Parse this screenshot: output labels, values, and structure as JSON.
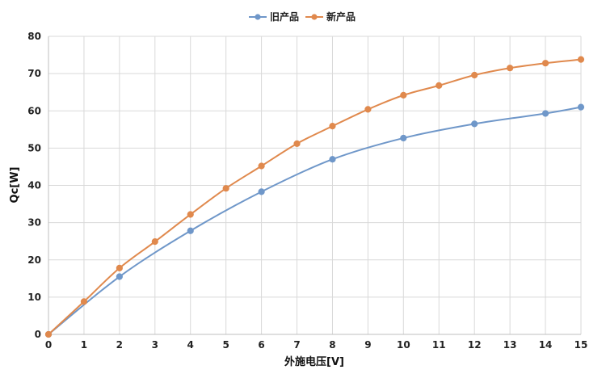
{
  "chart_data": {
    "type": "line",
    "title": "",
    "xlabel": "外施电压[V]",
    "ylabel": "Qc[W]",
    "xlim": [
      0,
      15
    ],
    "ylim": [
      0,
      80
    ],
    "x_ticks": [
      0,
      1,
      2,
      3,
      4,
      5,
      6,
      7,
      8,
      9,
      10,
      11,
      12,
      13,
      14,
      15
    ],
    "y_ticks": [
      0,
      10,
      20,
      30,
      40,
      50,
      60,
      70,
      80
    ],
    "grid": true,
    "legend_position": "top-center",
    "smooth": true,
    "series": [
      {
        "name": "旧产品",
        "color": "#6f97c9",
        "points": [
          {
            "x": 0,
            "y": 0
          },
          {
            "x": 2,
            "y": 15.5
          },
          {
            "x": 4,
            "y": 27.8
          },
          {
            "x": 6,
            "y": 38.3
          },
          {
            "x": 8,
            "y": 47.0
          },
          {
            "x": 10,
            "y": 52.7
          },
          {
            "x": 12,
            "y": 56.5
          },
          {
            "x": 14,
            "y": 59.3
          },
          {
            "x": 15,
            "y": 61.0
          }
        ]
      },
      {
        "name": "新产品",
        "color": "#e0894d",
        "points": [
          {
            "x": 0,
            "y": 0
          },
          {
            "x": 1,
            "y": 8.8
          },
          {
            "x": 2,
            "y": 17.8
          },
          {
            "x": 3,
            "y": 24.9
          },
          {
            "x": 4,
            "y": 32.2
          },
          {
            "x": 5,
            "y": 39.2
          },
          {
            "x": 6,
            "y": 45.2
          },
          {
            "x": 7,
            "y": 51.2
          },
          {
            "x": 8,
            "y": 55.9
          },
          {
            "x": 9,
            "y": 60.4
          },
          {
            "x": 10,
            "y": 64.2
          },
          {
            "x": 11,
            "y": 66.8
          },
          {
            "x": 12,
            "y": 69.6
          },
          {
            "x": 13,
            "y": 71.5
          },
          {
            "x": 14,
            "y": 72.8
          },
          {
            "x": 15,
            "y": 73.8
          }
        ]
      }
    ]
  }
}
